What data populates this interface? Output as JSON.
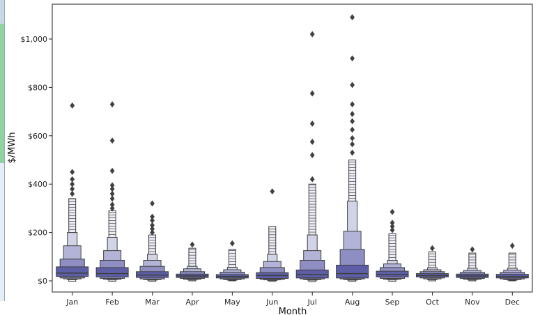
{
  "chart_data": {
    "type": "boxen",
    "title": "",
    "xlabel": "Month",
    "ylabel": "$/MWh",
    "categories": [
      "Jan",
      "Feb",
      "Mar",
      "Apr",
      "May",
      "Jun",
      "Jul",
      "Aug",
      "Sep",
      "Oct",
      "Nov",
      "Dec"
    ],
    "ylim": [
      -30,
      1150
    ],
    "yticks": [
      0,
      200,
      400,
      600,
      800,
      1000
    ],
    "ytick_labels": [
      "$0",
      "$200",
      "$400",
      "$600",
      "$800",
      "$1,000"
    ],
    "grid": false,
    "series": [
      {
        "category": "Jan",
        "median": 32,
        "boxes": [
          [
            18,
            58
          ],
          [
            12,
            90
          ],
          [
            8,
            145
          ],
          [
            5,
            200
          ]
        ],
        "whisker": [
          -2,
          340
        ],
        "outliers": [
          360,
          380,
          400,
          420,
          450,
          725
        ]
      },
      {
        "category": "Feb",
        "median": 30,
        "boxes": [
          [
            16,
            55
          ],
          [
            10,
            85
          ],
          [
            6,
            125
          ],
          [
            4,
            180
          ]
        ],
        "whisker": [
          -2,
          290
        ],
        "outliers": [
          300,
          315,
          340,
          360,
          380,
          395,
          455,
          580,
          730
        ]
      },
      {
        "category": "Mar",
        "median": 24,
        "boxes": [
          [
            14,
            38
          ],
          [
            8,
            60
          ],
          [
            5,
            85
          ],
          [
            3,
            110
          ]
        ],
        "whisker": [
          -2,
          190
        ],
        "outliers": [
          200,
          215,
          230,
          250,
          265,
          320
        ]
      },
      {
        "category": "Apr",
        "median": 20,
        "boxes": [
          [
            14,
            28
          ],
          [
            10,
            38
          ],
          [
            6,
            50
          ],
          [
            4,
            60
          ]
        ],
        "whisker": [
          0,
          135
        ],
        "outliers": [
          150
        ]
      },
      {
        "category": "May",
        "median": 18,
        "boxes": [
          [
            12,
            26
          ],
          [
            8,
            36
          ],
          [
            5,
            46
          ],
          [
            3,
            56
          ]
        ],
        "whisker": [
          0,
          130
        ],
        "outliers": [
          155
        ]
      },
      {
        "category": "Jun",
        "median": 22,
        "boxes": [
          [
            10,
            34
          ],
          [
            6,
            55
          ],
          [
            4,
            80
          ],
          [
            2,
            110
          ]
        ],
        "whisker": [
          -2,
          225
        ],
        "outliers": [
          370
        ]
      },
      {
        "category": "Jul",
        "median": 26,
        "boxes": [
          [
            12,
            45
          ],
          [
            8,
            85
          ],
          [
            5,
            125
          ],
          [
            3,
            190
          ]
        ],
        "whisker": [
          -4,
          400
        ],
        "outliers": [
          420,
          520,
          575,
          650,
          775,
          1020
        ]
      },
      {
        "category": "Aug",
        "median": 30,
        "boxes": [
          [
            12,
            65
          ],
          [
            8,
            130
          ],
          [
            5,
            205
          ],
          [
            3,
            330
          ]
        ],
        "whisker": [
          -2,
          500
        ],
        "outliers": [
          530,
          565,
          590,
          625,
          660,
          690,
          730,
          810,
          920,
          1090
        ]
      },
      {
        "category": "Sep",
        "median": 26,
        "boxes": [
          [
            16,
            40
          ],
          [
            10,
            55
          ],
          [
            6,
            70
          ],
          [
            4,
            85
          ]
        ],
        "whisker": [
          -2,
          195
        ],
        "outliers": [
          210,
          225,
          240,
          285
        ]
      },
      {
        "category": "Oct",
        "median": 22,
        "boxes": [
          [
            16,
            30
          ],
          [
            12,
            38
          ],
          [
            8,
            46
          ],
          [
            5,
            54
          ]
        ],
        "whisker": [
          0,
          120
        ],
        "outliers": [
          135
        ]
      },
      {
        "category": "Nov",
        "median": 20,
        "boxes": [
          [
            14,
            28
          ],
          [
            10,
            35
          ],
          [
            6,
            43
          ],
          [
            4,
            52
          ]
        ],
        "whisker": [
          0,
          115
        ],
        "outliers": [
          130
        ]
      },
      {
        "category": "Dec",
        "median": 18,
        "boxes": [
          [
            12,
            27
          ],
          [
            8,
            35
          ],
          [
            5,
            44
          ],
          [
            3,
            52
          ]
        ],
        "whisker": [
          0,
          115
        ],
        "outliers": [
          145
        ]
      }
    ],
    "box_colors": [
      "#5d5ea6",
      "#8e8ec2",
      "#b3b3d7",
      "#d3d3e8"
    ],
    "edge_color": "#3f3f3f",
    "outlier_color": "#404040"
  },
  "left_strip_colors": [
    "#c7d9e9",
    "#8fd3a3",
    "#e6eef5"
  ]
}
